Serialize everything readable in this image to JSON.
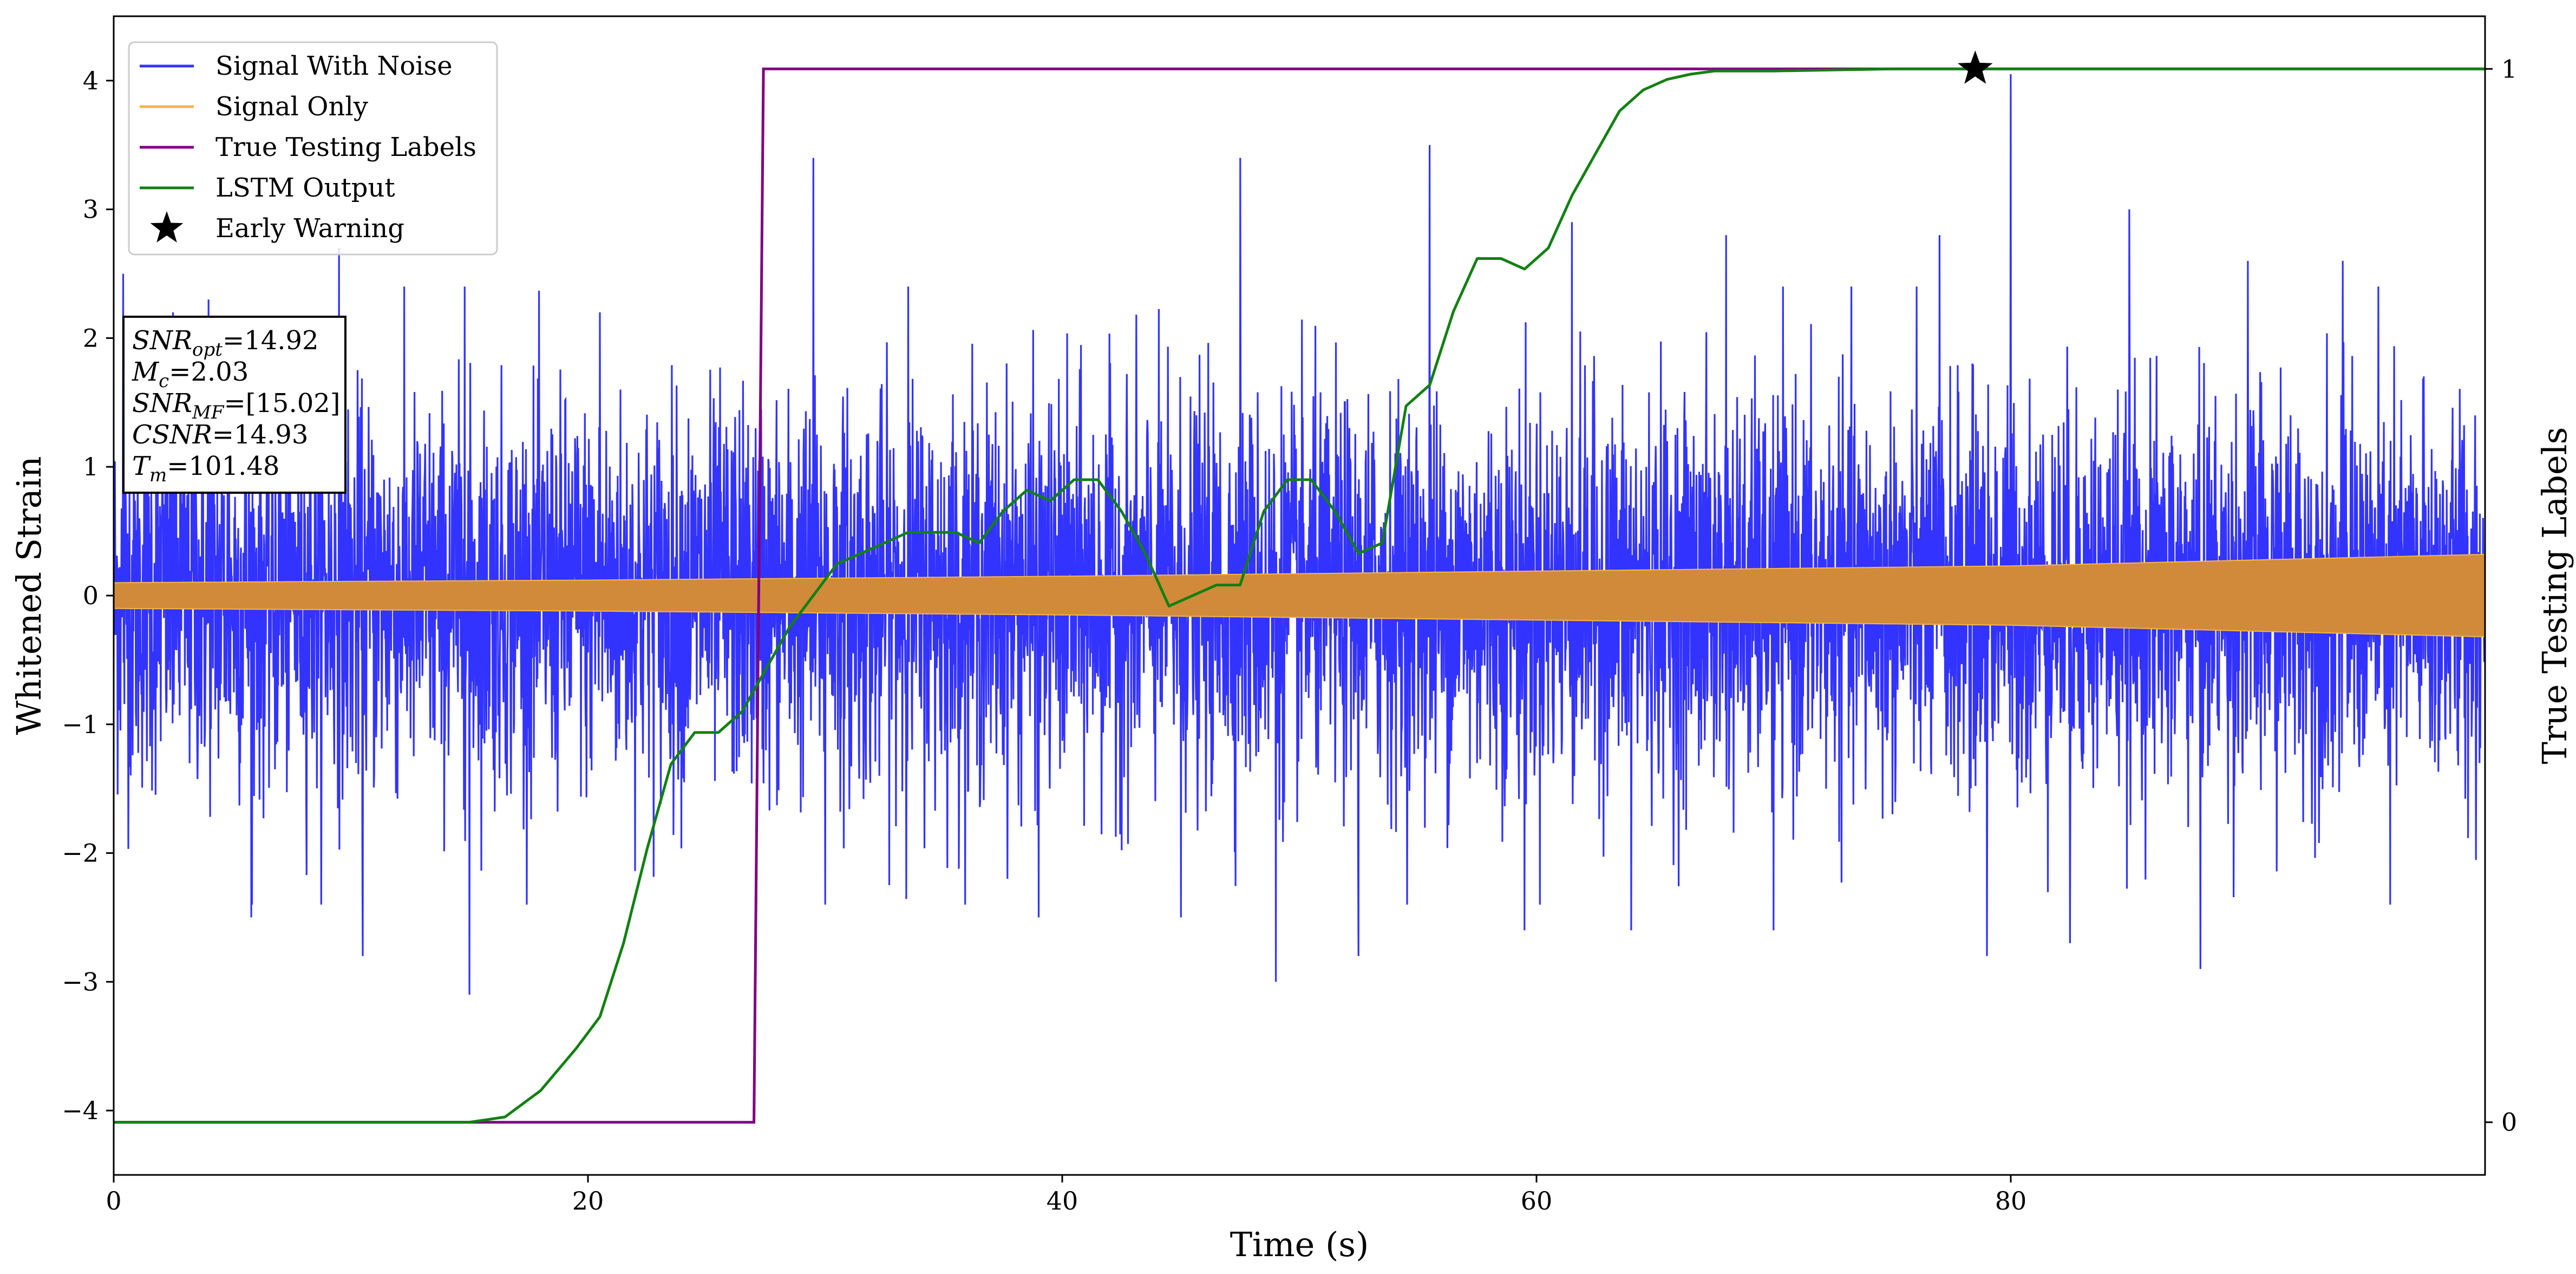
{
  "chart_data": {
    "type": "line",
    "xlabel": "Time (s)",
    "ylabel": "Whitened Strain",
    "y2label": "True Testing Labels",
    "xlim": [
      0,
      100
    ],
    "ylim": [
      -4.5,
      4.5
    ],
    "y2lim": [
      -0.05,
      1.05
    ],
    "xticks": [
      0,
      20,
      40,
      60,
      80
    ],
    "yticks": [
      -4,
      -3,
      -2,
      -1,
      0,
      1,
      2,
      3,
      4
    ],
    "y2ticks": [
      0,
      1
    ],
    "legend_position": "top-left",
    "grid": false,
    "colors": {
      "signal_with_noise": "#3333ff",
      "signal_only": "#f5b642",
      "overlap": "#d18a3a",
      "true_labels": "#800080",
      "lstm_output": "#118011",
      "early_warning": "#000000"
    },
    "series": [
      {
        "name": "Signal With Noise",
        "axis": "left",
        "description_kind": "noise",
        "baseline_std": 0.75,
        "peaks": [
          {
            "x": 0.4,
            "y": 2.5
          },
          {
            "x": 2.5,
            "y": 2.2
          },
          {
            "x": 4.0,
            "y": 2.3
          },
          {
            "x": 5.8,
            "y": -2.5
          },
          {
            "x": 9.5,
            "y": 2.7
          },
          {
            "x": 10.5,
            "y": -2.8
          },
          {
            "x": 14.8,
            "y": 2.4
          },
          {
            "x": 15.0,
            "y": -3.1
          },
          {
            "x": 20.5,
            "y": 2.2
          },
          {
            "x": 29.5,
            "y": 3.4
          },
          {
            "x": 30.0,
            "y": -2.4
          },
          {
            "x": 33.5,
            "y": 2.4
          },
          {
            "x": 39.0,
            "y": -2.5
          },
          {
            "x": 45.0,
            "y": -2.5
          },
          {
            "x": 47.5,
            "y": 3.4
          },
          {
            "x": 49.0,
            "y": -3.0
          },
          {
            "x": 52.5,
            "y": -2.8
          },
          {
            "x": 55.5,
            "y": 3.5
          },
          {
            "x": 59.5,
            "y": -2.6
          },
          {
            "x": 61.5,
            "y": 2.9
          },
          {
            "x": 64.0,
            "y": -2.6
          },
          {
            "x": 68.0,
            "y": 2.8
          },
          {
            "x": 70.0,
            "y": -2.6
          },
          {
            "x": 77.0,
            "y": 2.8
          },
          {
            "x": 79.0,
            "y": -2.8
          },
          {
            "x": 80.0,
            "y": 4.05
          },
          {
            "x": 82.5,
            "y": -2.7
          },
          {
            "x": 85.0,
            "y": 3.0
          },
          {
            "x": 88.0,
            "y": -2.9
          },
          {
            "x": 90.0,
            "y": 2.6
          },
          {
            "x": 94.0,
            "y": 2.6
          },
          {
            "x": 96.0,
            "y": -2.4
          }
        ]
      },
      {
        "name": "Signal Only",
        "axis": "left",
        "envelope_x": [
          0,
          20,
          40,
          60,
          80,
          100
        ],
        "envelope_amplitude": [
          0.1,
          0.12,
          0.15,
          0.19,
          0.23,
          0.32
        ]
      },
      {
        "name": "True Testing Labels",
        "axis": "right",
        "x": [
          0,
          27.0,
          27.4,
          100
        ],
        "y": [
          0,
          0,
          1,
          1
        ]
      },
      {
        "name": "LSTM Output",
        "axis": "right",
        "x": [
          0,
          10,
          15,
          16.5,
          18,
          19.5,
          20.5,
          21.5,
          22.5,
          23.5,
          24.5,
          25.5,
          26.5,
          27.5,
          28.5,
          29.5,
          30.5,
          31.5,
          32.5,
          33.5,
          34.5,
          35.5,
          36.5,
          37.5,
          38.5,
          39.5,
          40.5,
          41.5,
          42.5,
          43.5,
          44.5,
          45.5,
          46.5,
          47.5,
          48.5,
          49.5,
          50.5,
          51.5,
          52.5,
          53.5,
          54.5,
          55.5,
          56.5,
          57.5,
          58.5,
          59.5,
          60.5,
          61.5,
          62.5,
          63.5,
          64.5,
          65.5,
          66.5,
          67.5,
          70,
          75,
          80,
          85,
          90,
          100
        ],
        "y": [
          0,
          0,
          0,
          0.005,
          0.03,
          0.07,
          0.1,
          0.17,
          0.26,
          0.34,
          0.37,
          0.37,
          0.39,
          0.43,
          0.47,
          0.5,
          0.53,
          0.54,
          0.55,
          0.56,
          0.56,
          0.56,
          0.55,
          0.58,
          0.6,
          0.59,
          0.61,
          0.61,
          0.58,
          0.54,
          0.49,
          0.5,
          0.51,
          0.51,
          0.58,
          0.61,
          0.61,
          0.58,
          0.54,
          0.55,
          0.68,
          0.7,
          0.77,
          0.82,
          0.82,
          0.81,
          0.83,
          0.88,
          0.92,
          0.96,
          0.98,
          0.99,
          0.995,
          0.998,
          0.998,
          1.0,
          1.0,
          1.0,
          1.0,
          1.0
        ]
      }
    ],
    "early_warning": {
      "name": "Early Warning",
      "x": 78.5,
      "y": 1.0
    },
    "annotation": {
      "lines": [
        {
          "sym": "SNR",
          "sub": "opt",
          "rest": "=14.92"
        },
        {
          "sym": "M",
          "sub": "c",
          "rest": "=2.03"
        },
        {
          "sym": "SNR",
          "sub": "MF",
          "rest": "=[15.02]"
        },
        {
          "sym": "CSNR",
          "sub": "",
          "rest": "=14.93"
        },
        {
          "sym": "T",
          "sub": "m",
          "rest": "=101.48"
        }
      ]
    }
  }
}
